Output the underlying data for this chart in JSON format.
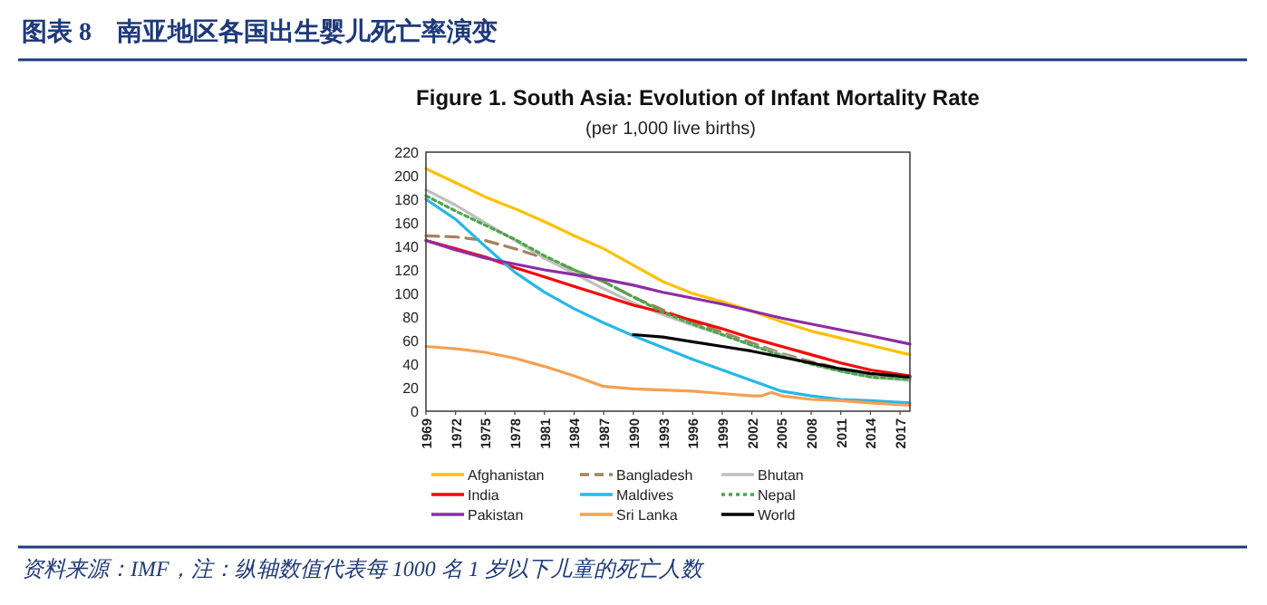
{
  "chart_data": {
    "type": "line",
    "title": "图表 8　南亚地区各国出生婴儿死亡率演变",
    "subtitle": "Figure 1. South Asia: Evolution of Infant Mortality Rate",
    "annotations": [
      "(per 1,000 live births)",
      "资料来源：IMF，注：纵轴数值代表每 1000 名 1 岁以下儿童的死亡人数"
    ],
    "xlim": [
      1969,
      2018
    ],
    "xticks": [
      1969,
      1972,
      1975,
      1978,
      1981,
      1984,
      1987,
      1990,
      1993,
      1996,
      1999,
      2002,
      2005,
      2008,
      2011,
      2014,
      2017
    ],
    "ylim": [
      0,
      220
    ],
    "yticks": [
      0,
      20,
      40,
      60,
      80,
      100,
      120,
      140,
      160,
      180,
      200,
      220
    ],
    "grid": false,
    "legend": "bottom",
    "marker": "none",
    "series": [
      {
        "name": "Afghanistan",
        "color": "#ffc000",
        "line_style": "solid",
        "x": [
          1969,
          1972,
          1975,
          1978,
          1981,
          1984,
          1987,
          1990,
          1993,
          1996,
          1999,
          2002,
          2005,
          2008,
          2011,
          2014,
          2018
        ],
        "values": [
          206,
          194,
          182,
          172,
          161,
          149,
          138,
          124,
          110,
          100,
          93,
          85,
          76,
          68,
          62,
          56,
          48
        ]
      },
      {
        "name": "Bangladesh",
        "color": "#a5825f",
        "line_style": "dashed",
        "x": [
          1969,
          1972,
          1975,
          1978,
          1981,
          1984,
          1987,
          1990,
          1993,
          1996,
          1999,
          2002,
          2005,
          2008,
          2011,
          2014,
          2018
        ],
        "values": [
          149,
          148,
          145,
          138,
          130,
          120,
          110,
          97,
          86,
          76,
          67,
          58,
          49,
          42,
          36,
          31,
          27
        ]
      },
      {
        "name": "Bhutan",
        "color": "#bfbfbf",
        "line_style": "solid",
        "x": [
          1969,
          1972,
          1975,
          1978,
          1981,
          1984,
          1987,
          1990,
          1993,
          1996,
          1999,
          2002,
          2005,
          2008,
          2011,
          2014,
          2018
        ],
        "values": [
          188,
          175,
          160,
          145,
          130,
          117,
          104,
          92,
          82,
          73,
          65,
          56,
          48,
          40,
          34,
          29,
          26
        ]
      },
      {
        "name": "India",
        "color": "#ff0000",
        "line_style": "solid",
        "x": [
          1969,
          1972,
          1975,
          1978,
          1981,
          1984,
          1987,
          1990,
          1993,
          1996,
          1999,
          2002,
          2005,
          2008,
          2011,
          2014,
          2018
        ],
        "values": [
          145,
          138,
          131,
          122,
          114,
          106,
          98,
          90,
          84,
          77,
          70,
          62,
          55,
          48,
          41,
          35,
          30
        ]
      },
      {
        "name": "Maldives",
        "color": "#27b7e8",
        "line_style": "solid",
        "x": [
          1969,
          1972,
          1975,
          1978,
          1981,
          1984,
          1987,
          1990,
          1993,
          1996,
          1999,
          2002,
          2005,
          2008,
          2011,
          2014,
          2018
        ],
        "values": [
          180,
          163,
          140,
          118,
          101,
          87,
          75,
          64,
          54,
          44,
          35,
          26,
          17,
          13,
          10,
          9,
          7
        ]
      },
      {
        "name": "Nepal",
        "color": "#4ca64c",
        "line_style": "dotted",
        "x": [
          1969,
          1972,
          1975,
          1978,
          1981,
          1984,
          1987,
          1990,
          1993,
          1996,
          1999,
          2002,
          2005,
          2008,
          2011,
          2014,
          2018
        ],
        "values": [
          183,
          170,
          158,
          146,
          132,
          120,
          110,
          97,
          84,
          74,
          65,
          56,
          47,
          40,
          34,
          29,
          27
        ]
      },
      {
        "name": "Pakistan",
        "color": "#8e2ca6",
        "line_style": "solid",
        "x": [
          1969,
          1972,
          1975,
          1978,
          1981,
          1984,
          1987,
          1990,
          1993,
          1996,
          1999,
          2002,
          2005,
          2008,
          2011,
          2014,
          2018
        ],
        "values": [
          145,
          137,
          130,
          125,
          120,
          116,
          112,
          107,
          101,
          96,
          91,
          85,
          79,
          74,
          69,
          64,
          57
        ]
      },
      {
        "name": "Sri Lanka",
        "color": "#f5a050",
        "line_style": "solid",
        "x": [
          1969,
          1972,
          1975,
          1978,
          1981,
          1984,
          1987,
          1990,
          1993,
          1996,
          1999,
          2002,
          2003,
          2004,
          2005,
          2008,
          2011,
          2014,
          2018
        ],
        "values": [
          55,
          53,
          50,
          45,
          38,
          30,
          21,
          19,
          18,
          17,
          15,
          13,
          13,
          16,
          13,
          10,
          9,
          7,
          5
        ]
      },
      {
        "name": "World",
        "color": "#000000",
        "line_style": "solid",
        "x": [
          1990,
          1993,
          1996,
          1999,
          2002,
          2005,
          2008,
          2011,
          2014,
          2018
        ],
        "values": [
          65,
          63,
          59,
          55,
          51,
          46,
          41,
          36,
          32,
          29
        ]
      }
    ]
  }
}
